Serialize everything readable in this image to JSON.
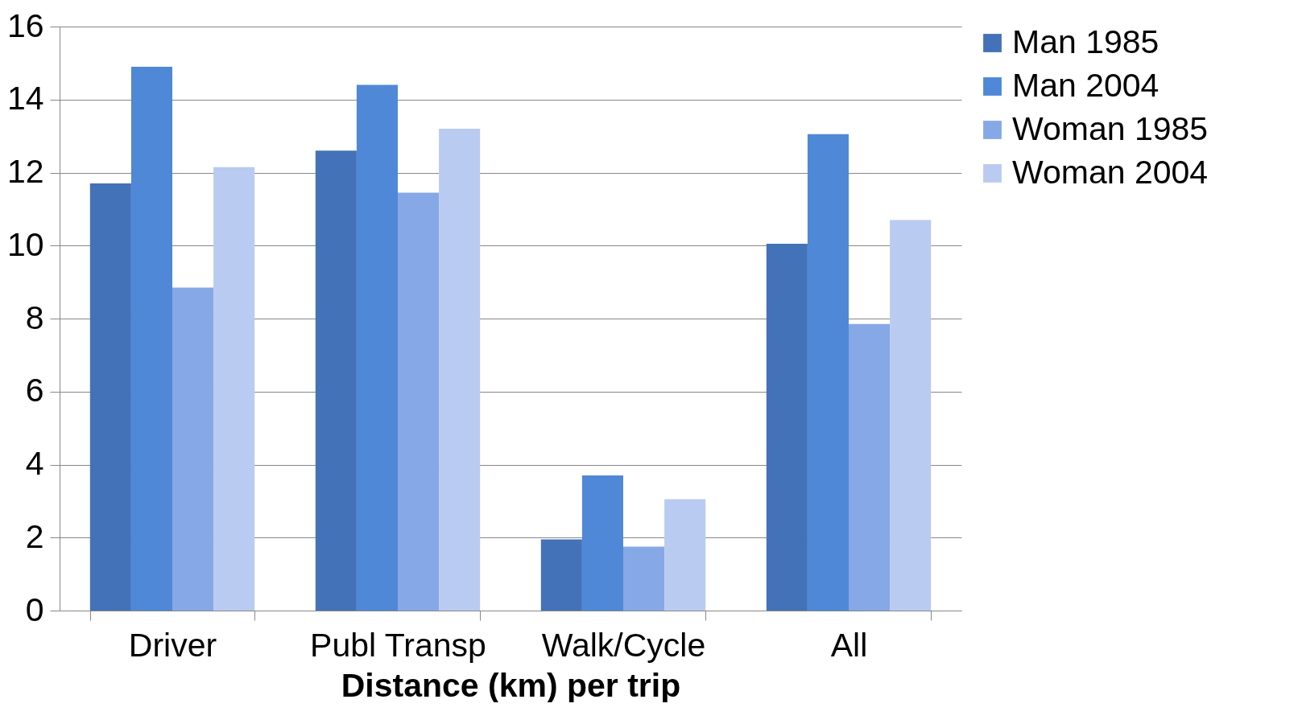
{
  "chart_data": {
    "type": "bar",
    "xlabel": "Distance (km) per trip",
    "categories": [
      "Driver",
      "Publ Transp",
      "Walk/Cycle",
      "All"
    ],
    "series": [
      {
        "name": "Man 1985",
        "color": "#4472b8",
        "values": [
          11.7,
          12.6,
          1.95,
          10.05
        ]
      },
      {
        "name": "Man 2004",
        "color": "#4f88d6",
        "values": [
          14.9,
          14.4,
          3.7,
          13.05
        ]
      },
      {
        "name": "Woman 1985",
        "color": "#86a8e6",
        "values": [
          8.85,
          11.45,
          1.75,
          7.85
        ]
      },
      {
        "name": "Woman 2004",
        "color": "#b9cbf0",
        "values": [
          12.15,
          13.2,
          3.05,
          10.7
        ]
      }
    ],
    "ylim": [
      0,
      16
    ],
    "yticks": [
      0,
      2,
      4,
      6,
      8,
      10,
      12,
      14,
      16
    ],
    "grid": "y",
    "legend": "right"
  }
}
